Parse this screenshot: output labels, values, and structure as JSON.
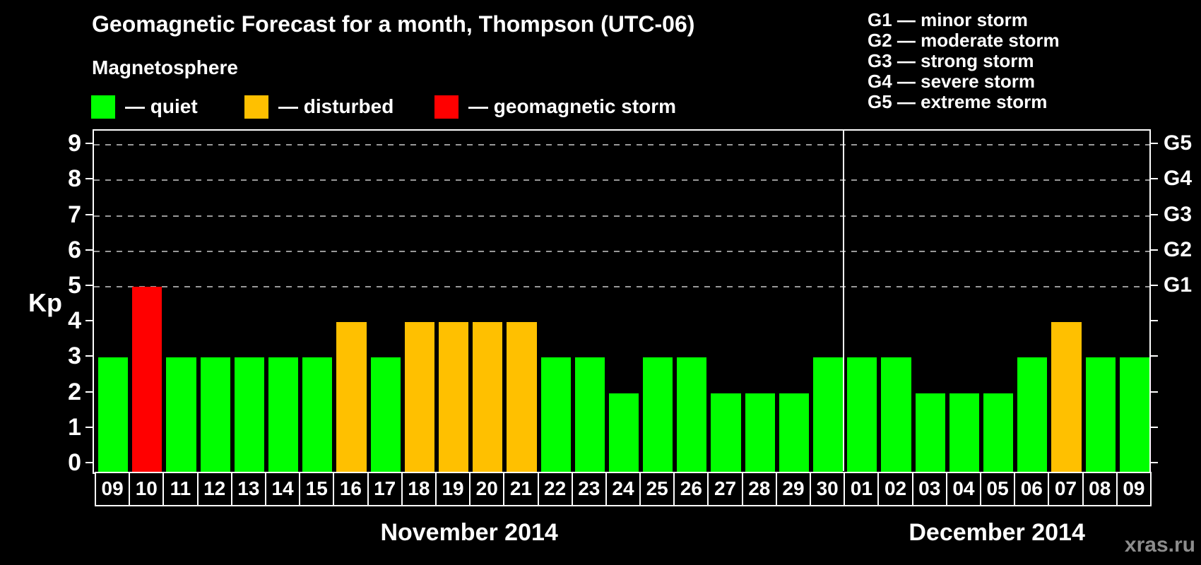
{
  "title": "Geomagnetic Forecast for a month, Thompson (UTC-06)",
  "subtitle": "Magnetosphere",
  "legend": {
    "items": [
      {
        "state": "quiet",
        "label": "— quiet",
        "color": "#00FF00"
      },
      {
        "state": "disturbed",
        "label": "— disturbed",
        "color": "#FFC000"
      },
      {
        "state": "storm",
        "label": "— geomagnetic storm",
        "color": "#FF0000"
      }
    ]
  },
  "g_legend": [
    {
      "label": "G1 — minor storm"
    },
    {
      "label": "G2 — moderate storm"
    },
    {
      "label": "G3 — strong storm"
    },
    {
      "label": "G4 — severe storm"
    },
    {
      "label": "G5 — extreme storm"
    }
  ],
  "y_axis": {
    "label": "Kp",
    "ticks": [
      "0",
      "1",
      "2",
      "3",
      "4",
      "5",
      "6",
      "7",
      "8",
      "9"
    ]
  },
  "right_axis_labels": [
    "G1",
    "G2",
    "G3",
    "G4",
    "G5"
  ],
  "watermark": "xras.ru",
  "colors": {
    "background": "#000000",
    "axis": "#FFFFFF",
    "gridline": "#999999",
    "text": "#FFFFFF",
    "watermark": "#8C8C8C",
    "quiet": "#00FF00",
    "disturbed": "#FFC000",
    "storm": "#FF0000"
  },
  "chart_data": {
    "type": "bar",
    "title": "Geomagnetic Forecast for a month, Thompson (UTC-06)",
    "xlabel": "",
    "ylabel": "Kp",
    "ylim": [
      0,
      9
    ],
    "grid": "dashed horizontal at Kp 5-9 only",
    "gridlines_at": [
      5,
      6,
      7,
      8,
      9
    ],
    "right_axis_levels": {
      "G1": 5,
      "G2": 6,
      "G3": 7,
      "G4": 8,
      "G5": 9
    },
    "legend_position": "top-left",
    "months": [
      {
        "name": "November 2014",
        "days": [
          {
            "day": "09",
            "kp": 3,
            "state": "quiet"
          },
          {
            "day": "10",
            "kp": 5,
            "state": "storm"
          },
          {
            "day": "11",
            "kp": 3,
            "state": "quiet"
          },
          {
            "day": "12",
            "kp": 3,
            "state": "quiet"
          },
          {
            "day": "13",
            "kp": 3,
            "state": "quiet"
          },
          {
            "day": "14",
            "kp": 3,
            "state": "quiet"
          },
          {
            "day": "15",
            "kp": 3,
            "state": "quiet"
          },
          {
            "day": "16",
            "kp": 4,
            "state": "disturbed"
          },
          {
            "day": "17",
            "kp": 3,
            "state": "quiet"
          },
          {
            "day": "18",
            "kp": 4,
            "state": "disturbed"
          },
          {
            "day": "19",
            "kp": 4,
            "state": "disturbed"
          },
          {
            "day": "20",
            "kp": 4,
            "state": "disturbed"
          },
          {
            "day": "21",
            "kp": 4,
            "state": "disturbed"
          },
          {
            "day": "22",
            "kp": 3,
            "state": "quiet"
          },
          {
            "day": "23",
            "kp": 3,
            "state": "quiet"
          },
          {
            "day": "24",
            "kp": 2,
            "state": "quiet"
          },
          {
            "day": "25",
            "kp": 3,
            "state": "quiet"
          },
          {
            "day": "26",
            "kp": 3,
            "state": "quiet"
          },
          {
            "day": "27",
            "kp": 2,
            "state": "quiet"
          },
          {
            "day": "28",
            "kp": 2,
            "state": "quiet"
          },
          {
            "day": "29",
            "kp": 2,
            "state": "quiet"
          },
          {
            "day": "30",
            "kp": 3,
            "state": "quiet"
          }
        ]
      },
      {
        "name": "December 2014",
        "days": [
          {
            "day": "01",
            "kp": 3,
            "state": "quiet"
          },
          {
            "day": "02",
            "kp": 3,
            "state": "quiet"
          },
          {
            "day": "03",
            "kp": 2,
            "state": "quiet"
          },
          {
            "day": "04",
            "kp": 2,
            "state": "quiet"
          },
          {
            "day": "05",
            "kp": 2,
            "state": "quiet"
          },
          {
            "day": "06",
            "kp": 3,
            "state": "quiet"
          },
          {
            "day": "07",
            "kp": 4,
            "state": "disturbed"
          },
          {
            "day": "08",
            "kp": 3,
            "state": "quiet"
          },
          {
            "day": "09",
            "kp": 3,
            "state": "quiet"
          }
        ]
      }
    ]
  }
}
